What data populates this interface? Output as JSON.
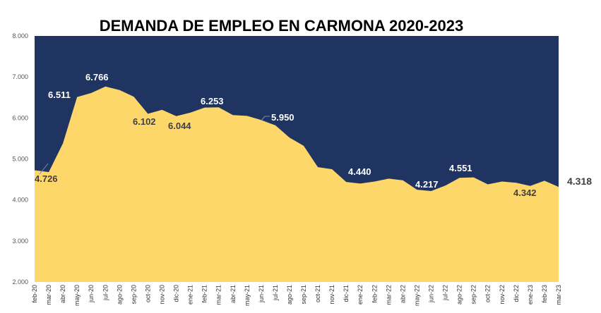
{
  "chart_data": {
    "type": "area",
    "title": "DEMANDA DE EMPLEO EN CARMONA 2020-2023",
    "ylim": [
      2000,
      8000
    ],
    "yticks": [
      "2.000",
      "3.000",
      "4.000",
      "5.000",
      "6.000",
      "7.000",
      "8.000"
    ],
    "grid": false,
    "legend": "none",
    "colors": {
      "fill": "#FDD76A",
      "background": "#1F3461"
    },
    "categories": [
      "feb-20",
      "mar-20",
      "abr-20",
      "may-20",
      "jun-20",
      "jul-20",
      "ago-20",
      "sep-20",
      "oct-20",
      "nov-20",
      "dic-20",
      "ene-21",
      "feb-21",
      "mar-21",
      "abr-21",
      "may-21",
      "jun-21",
      "jul-21",
      "ago-21",
      "sep-21",
      "oct-21",
      "nov-21",
      "dic-21",
      "ene-22",
      "feb-22",
      "mar-22",
      "abr-22",
      "may-22",
      "jun-22",
      "jul-22",
      "ago-22",
      "sep-22",
      "oct-22",
      "nov-22",
      "dic-22",
      "ene-23",
      "feb-23",
      "mar-23"
    ],
    "values": [
      4726,
      4680,
      5380,
      6511,
      6610,
      6766,
      6680,
      6520,
      6102,
      6200,
      6044,
      6130,
      6253,
      6260,
      6070,
      6050,
      5950,
      5820,
      5520,
      5320,
      4800,
      4750,
      4440,
      4400,
      4450,
      4520,
      4480,
      4250,
      4217,
      4350,
      4540,
      4551,
      4380,
      4450,
      4420,
      4342,
      4470,
      4318
    ],
    "data_labels": [
      {
        "index": 0,
        "text": "4.726"
      },
      {
        "index": 3,
        "text": "6.511"
      },
      {
        "index": 5,
        "text": "6.766"
      },
      {
        "index": 8,
        "text": "6.102"
      },
      {
        "index": 10,
        "text": "6.044"
      },
      {
        "index": 12,
        "text": "6.253"
      },
      {
        "index": 16,
        "text": "5.950"
      },
      {
        "index": 22,
        "text": "4.440"
      },
      {
        "index": 28,
        "text": "4.217"
      },
      {
        "index": 31,
        "text": "4.551"
      },
      {
        "index": 35,
        "text": "4.342"
      },
      {
        "index": 37,
        "text": "4.318"
      }
    ]
  }
}
